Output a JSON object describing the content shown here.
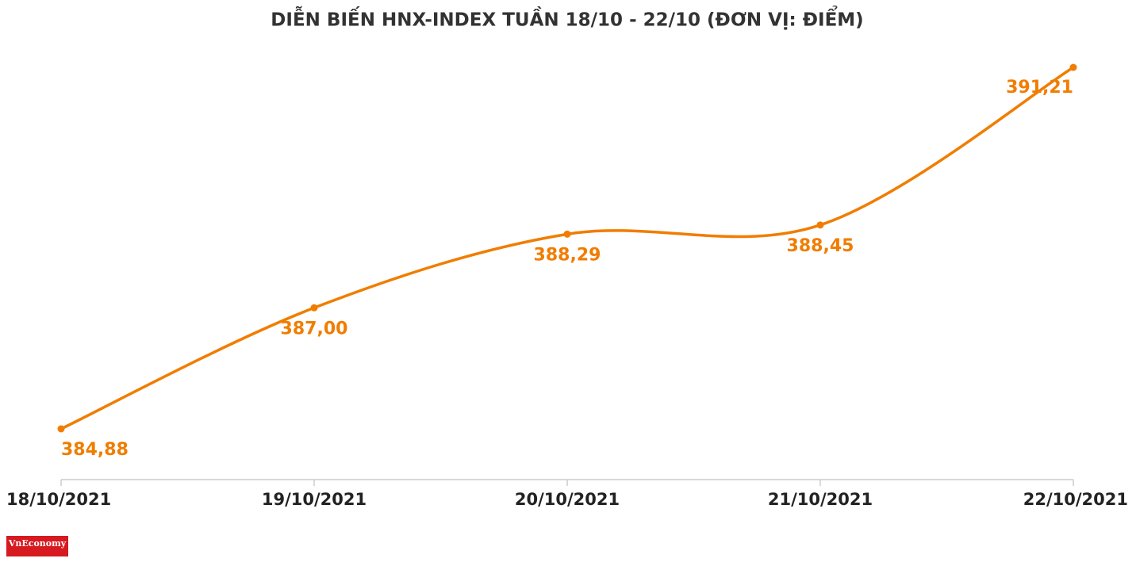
{
  "chart_data": {
    "type": "line",
    "title": "DIỄN BIẾN HNX-INDEX TUẦN 18/10 - 22/10 (ĐƠN VỊ: ĐIỂM)",
    "categories": [
      "18/10/2021",
      "19/10/2021",
      "20/10/2021",
      "21/10/2021",
      "22/10/2021"
    ],
    "values": [
      384.88,
      387.0,
      388.29,
      388.45,
      391.21
    ],
    "value_labels": [
      "384,88",
      "387,00",
      "388,29",
      "388,45",
      "391,21"
    ],
    "color": "#f07d00"
  },
  "logo": "VnEconomy"
}
